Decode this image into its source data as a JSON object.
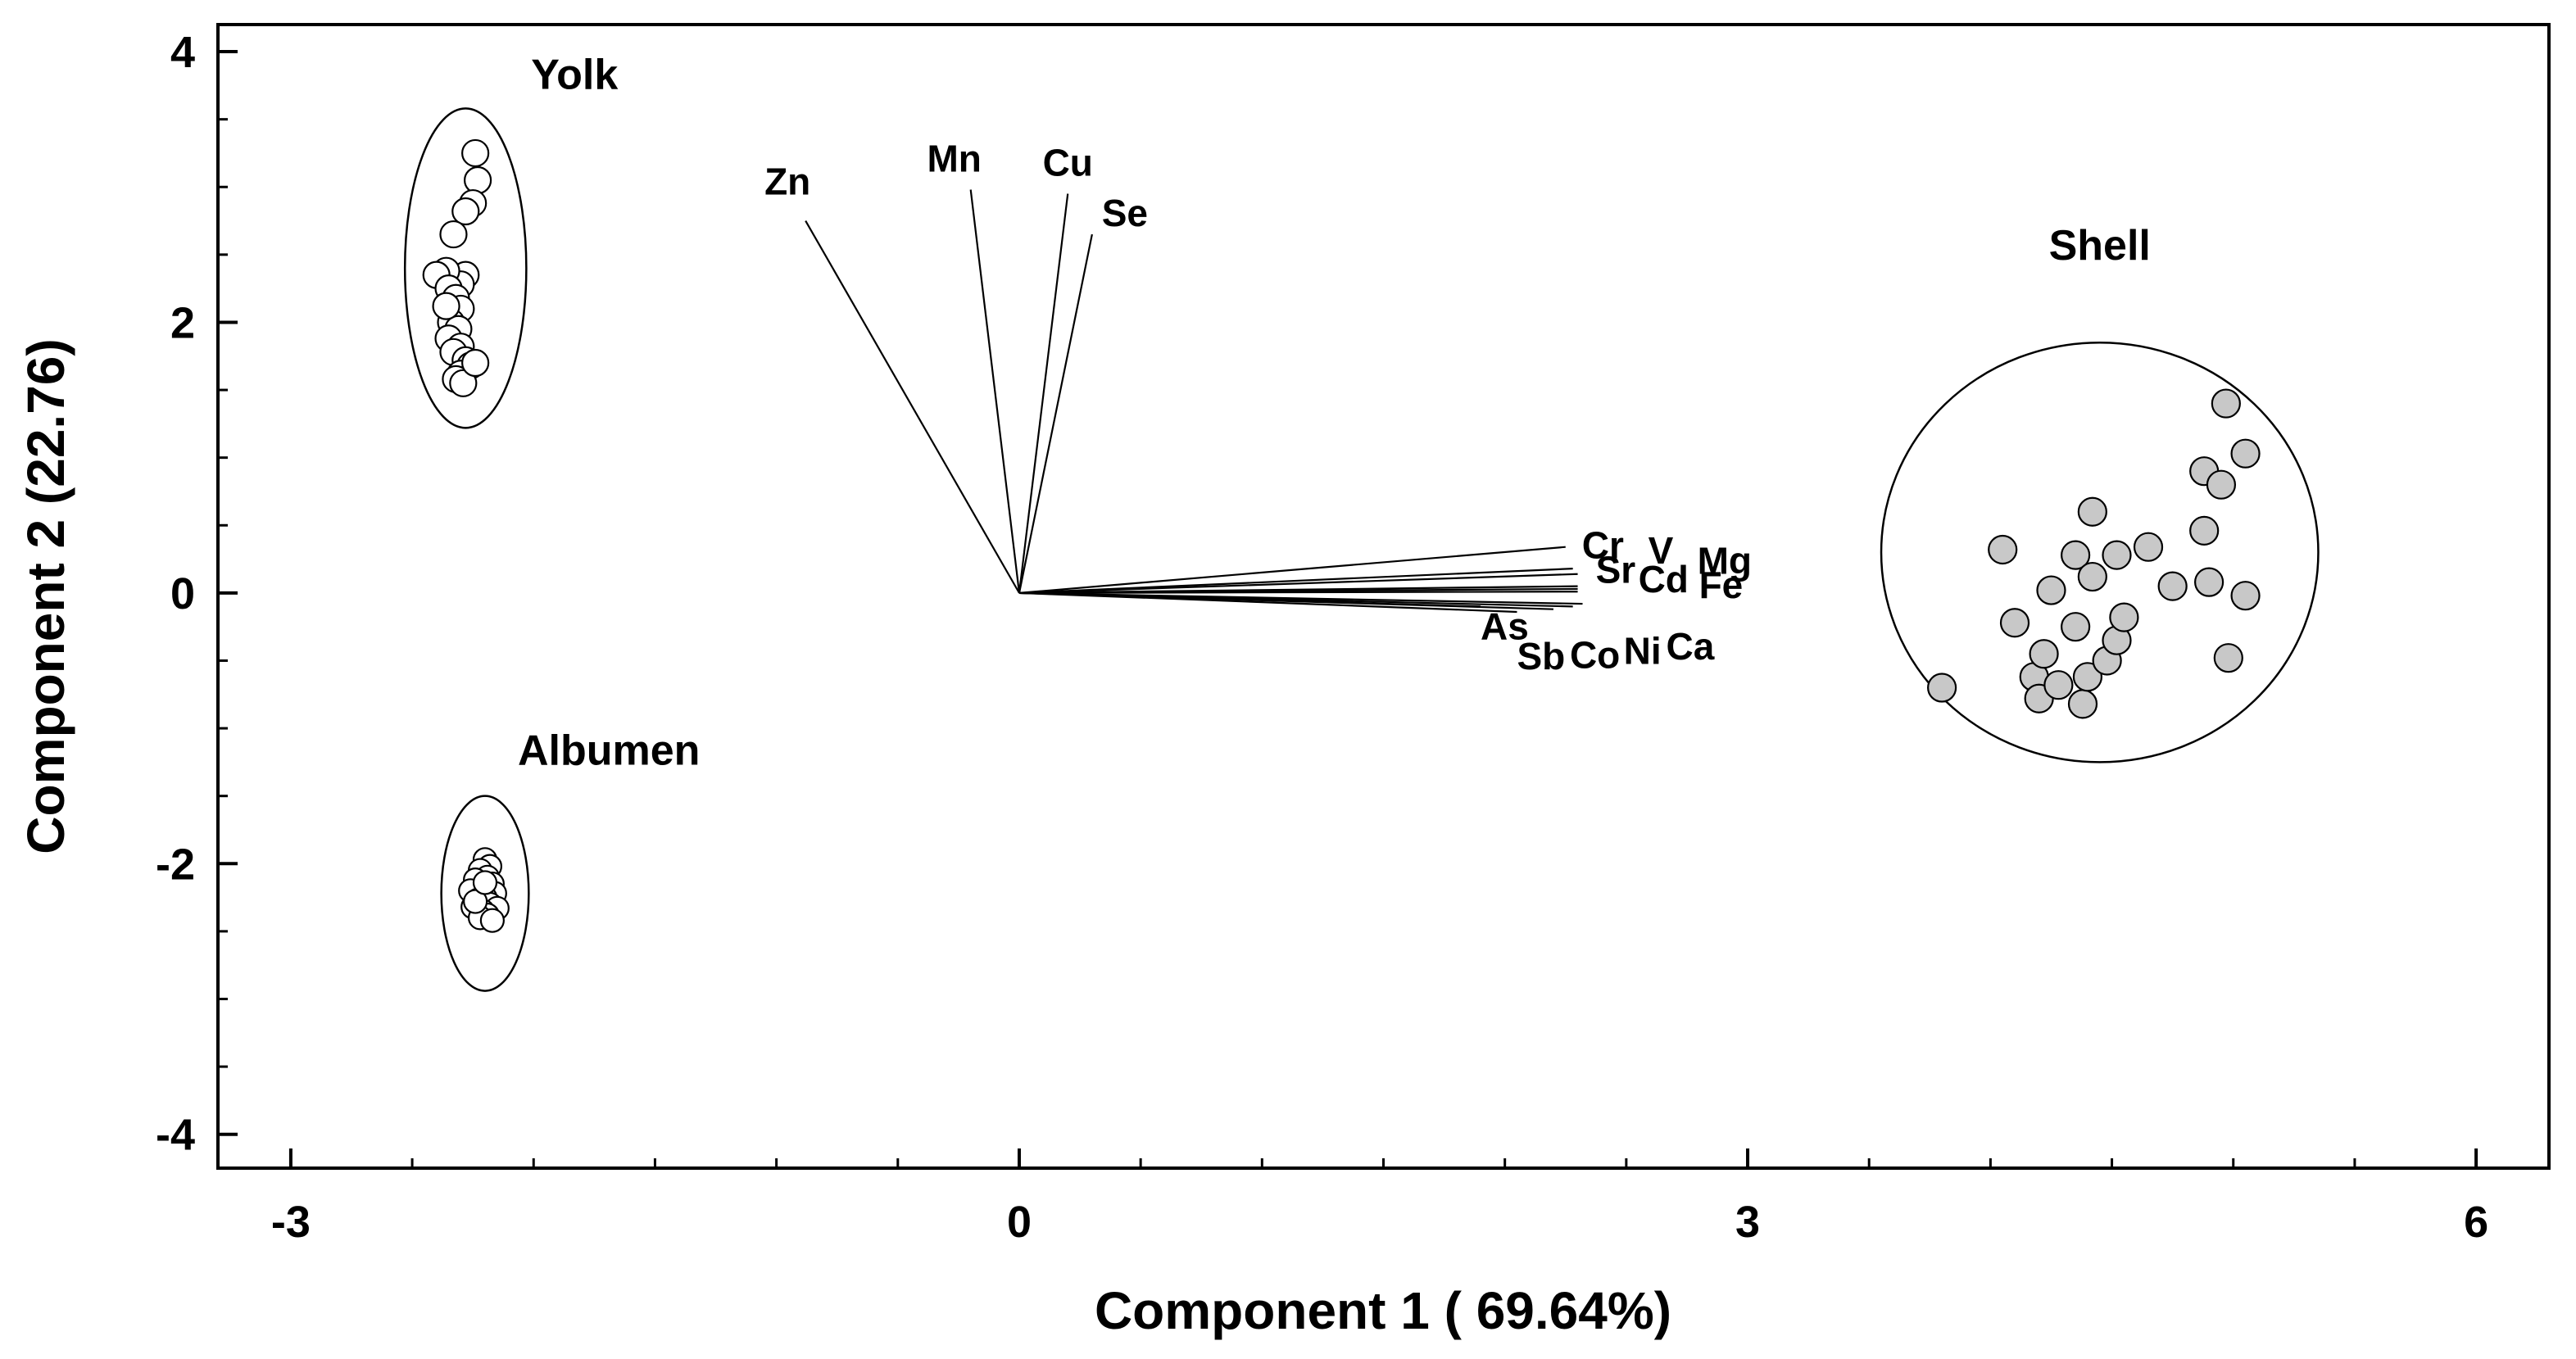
{
  "chart_data": {
    "type": "scatter",
    "title": "",
    "xlabel": "Component 1 ( 69.64%)",
    "ylabel": "Component 2 (22.76)",
    "xlim": [
      -3.3,
      6.3
    ],
    "ylim": [
      -4.25,
      4.2
    ],
    "xticks": [
      -3,
      0,
      3,
      6
    ],
    "yticks": [
      -4,
      -2,
      0,
      2,
      4
    ],
    "xtick_labels": [
      "-3",
      "0",
      "3",
      "6"
    ],
    "ytick_labels": [
      "-4",
      "-2",
      "0",
      "2",
      "4"
    ],
    "grid": false,
    "legend": "none",
    "colors": {
      "yolk": "#ffffff",
      "albumen": "#ffffff",
      "shell": "#c8c8c8",
      "stroke": "#000000"
    },
    "groups": [
      {
        "label": "Yolk",
        "ellipse": {
          "cx": -2.28,
          "cy": 2.4,
          "rx": 0.25,
          "ry": 1.18
        },
        "points": [
          [
            -2.24,
            3.25
          ],
          [
            -2.23,
            3.05
          ],
          [
            -2.25,
            2.88
          ],
          [
            -2.28,
            2.82
          ],
          [
            -2.33,
            2.65
          ],
          [
            -2.28,
            2.35
          ],
          [
            -2.3,
            2.28
          ],
          [
            -2.36,
            2.38
          ],
          [
            -2.4,
            2.35
          ],
          [
            -2.35,
            2.25
          ],
          [
            -2.32,
            2.18
          ],
          [
            -2.3,
            2.1
          ],
          [
            -2.34,
            2.0
          ],
          [
            -2.31,
            1.95
          ],
          [
            -2.35,
            1.88
          ],
          [
            -2.3,
            1.82
          ],
          [
            -2.33,
            1.78
          ],
          [
            -2.28,
            1.72
          ],
          [
            -2.26,
            1.68
          ],
          [
            -2.3,
            1.62
          ],
          [
            -2.32,
            1.58
          ],
          [
            -2.29,
            1.55
          ],
          [
            -2.24,
            1.7
          ],
          [
            -2.36,
            2.12
          ]
        ]
      },
      {
        "label": "Albumen",
        "ellipse": {
          "cx": -2.2,
          "cy": -2.22,
          "rx": 0.18,
          "ry": 0.72
        },
        "points": [
          [
            -2.2,
            -1.97
          ],
          [
            -2.18,
            -2.02
          ],
          [
            -2.22,
            -2.05
          ],
          [
            -2.19,
            -2.1
          ],
          [
            -2.24,
            -2.12
          ],
          [
            -2.17,
            -2.15
          ],
          [
            -2.21,
            -2.18
          ],
          [
            -2.26,
            -2.2
          ],
          [
            -2.16,
            -2.22
          ],
          [
            -2.2,
            -2.25
          ],
          [
            -2.23,
            -2.27
          ],
          [
            -2.18,
            -2.3
          ],
          [
            -2.25,
            -2.32
          ],
          [
            -2.15,
            -2.33
          ],
          [
            -2.21,
            -2.35
          ],
          [
            -2.19,
            -2.38
          ],
          [
            -2.22,
            -2.4
          ],
          [
            -2.17,
            -2.42
          ],
          [
            -2.24,
            -2.28
          ],
          [
            -2.2,
            -2.14
          ]
        ]
      },
      {
        "label": "Shell",
        "ellipse": {
          "cx": 4.45,
          "cy": 0.3,
          "rx": 0.9,
          "ry": 1.55
        },
        "points": [
          [
            3.8,
            -0.7
          ],
          [
            4.05,
            0.32
          ],
          [
            4.1,
            -0.22
          ],
          [
            4.18,
            -0.62
          ],
          [
            4.22,
            -0.45
          ],
          [
            4.2,
            -0.78
          ],
          [
            4.25,
            0.02
          ],
          [
            4.28,
            -0.68
          ],
          [
            4.35,
            0.28
          ],
          [
            4.35,
            -0.25
          ],
          [
            4.38,
            -0.82
          ],
          [
            4.4,
            -0.62
          ],
          [
            4.42,
            0.12
          ],
          [
            4.42,
            0.6
          ],
          [
            4.48,
            -0.5
          ],
          [
            4.52,
            0.28
          ],
          [
            4.52,
            -0.35
          ],
          [
            4.55,
            -0.18
          ],
          [
            4.65,
            0.34
          ],
          [
            4.75,
            0.05
          ],
          [
            4.88,
            0.9
          ],
          [
            4.88,
            0.46
          ],
          [
            4.9,
            0.08
          ],
          [
            4.95,
            0.8
          ],
          [
            4.97,
            1.4
          ],
          [
            4.98,
            -0.48
          ],
          [
            5.05,
            1.03
          ],
          [
            5.05,
            -0.02
          ]
        ]
      }
    ],
    "loadings": [
      {
        "label": "Zn",
        "x": -0.88,
        "y": 2.75
      },
      {
        "label": "Mn",
        "x": -0.2,
        "y": 2.98
      },
      {
        "label": "Cu",
        "x": 0.2,
        "y": 2.95
      },
      {
        "label": "Se",
        "x": 0.3,
        "y": 2.65
      },
      {
        "label": "Cr",
        "x": 2.25,
        "y": 0.34
      },
      {
        "label": "V",
        "x": 2.28,
        "y": 0.18
      },
      {
        "label": "Mg",
        "x": 2.3,
        "y": 0.14
      },
      {
        "label": "Sr",
        "x": 2.3,
        "y": 0.05
      },
      {
        "label": "Cd",
        "x": 2.3,
        "y": 0.03
      },
      {
        "label": "Fe",
        "x": 2.3,
        "y": 0.01
      },
      {
        "label": "As",
        "x": 1.9,
        "y": -0.1
      },
      {
        "label": "Sb",
        "x": 2.05,
        "y": -0.14
      },
      {
        "label": "Co",
        "x": 2.2,
        "y": -0.12
      },
      {
        "label": "Ni",
        "x": 2.28,
        "y": -0.1
      },
      {
        "label": "Ca",
        "x": 2.32,
        "y": -0.08
      }
    ]
  }
}
